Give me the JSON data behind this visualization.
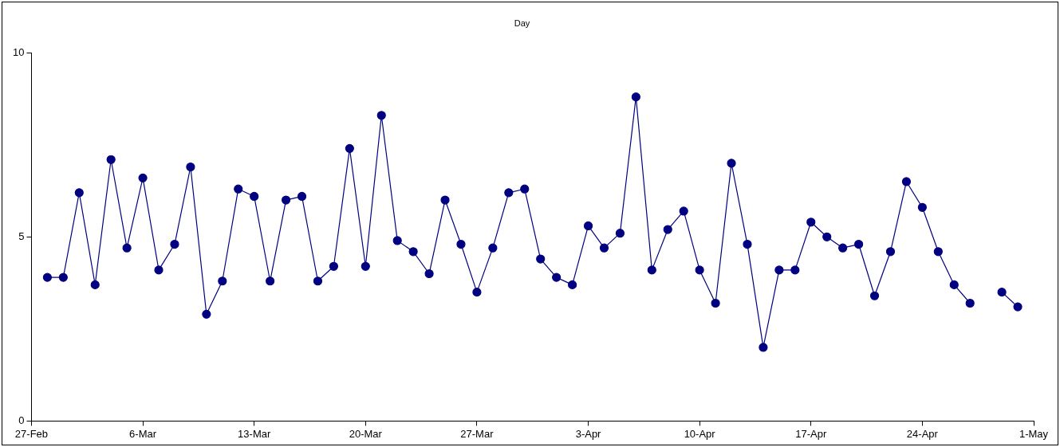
{
  "chart_data": {
    "type": "line",
    "title": "Day",
    "x": [
      "--02-28",
      "--03-01",
      "--03-02",
      "--03-03",
      "--03-04",
      "--03-05",
      "--03-06",
      "--03-07",
      "--03-08",
      "--03-09",
      "--03-10",
      "--03-11",
      "--03-12",
      "--03-13",
      "--03-14",
      "--03-15",
      "--03-16",
      "--03-17",
      "--03-18",
      "--03-19",
      "--03-20",
      "--03-21",
      "--03-22",
      "--03-23",
      "--03-24",
      "--03-25",
      "--03-26",
      "--03-27",
      "--03-28",
      "--03-29",
      "--03-30",
      "--03-31",
      "--04-01",
      "--04-02",
      "--04-03",
      "--04-04",
      "--04-05",
      "--04-06",
      "--04-07",
      "--04-08",
      "--04-09",
      "--04-10",
      "--04-11",
      "--04-12",
      "--04-13",
      "--04-14",
      "--04-15",
      "--04-16",
      "--04-17",
      "--04-18",
      "--04-19",
      "--04-20",
      "--04-21",
      "--04-22",
      "--04-23",
      "--04-24",
      "--04-25",
      "--04-26",
      "--04-27",
      "--04-28",
      "--04-29",
      "--04-30"
    ],
    "series": [
      {
        "color": "#000080",
        "values": [
          3.9,
          3.9,
          6.2,
          3.7,
          7.1,
          4.7,
          6.6,
          4.1,
          4.8,
          6.9,
          2.9,
          3.8,
          6.3,
          6.1,
          3.8,
          6.0,
          6.1,
          3.8,
          4.2,
          7.4,
          4.2,
          8.3,
          4.9,
          4.6,
          4.0,
          6.0,
          4.8,
          3.5,
          4.7,
          6.2,
          6.3,
          4.4,
          3.9,
          3.7,
          5.3,
          4.7,
          5.1,
          8.8,
          4.1,
          5.2,
          5.7,
          4.1,
          3.2,
          7.0,
          4.8,
          2.0,
          4.1,
          4.1,
          5.4,
          5.0,
          4.7,
          4.8,
          3.4,
          4.6,
          6.5,
          5.8,
          4.6,
          3.7,
          3.2,
          null,
          3.5,
          3.1
        ]
      }
    ],
    "xlim": [
      "--02-27",
      "--05-01"
    ],
    "xticks": [
      {
        "value": "--02-27",
        "label": "27-Feb"
      },
      {
        "value": "--03-06",
        "label": "6-Mar"
      },
      {
        "value": "--03-13",
        "label": "13-Mar"
      },
      {
        "value": "--03-20",
        "label": "20-Mar"
      },
      {
        "value": "--03-27",
        "label": "27-Mar"
      },
      {
        "value": "--04-03",
        "label": "3-Apr"
      },
      {
        "value": "--04-10",
        "label": "10-Apr"
      },
      {
        "value": "--04-17",
        "label": "17-Apr"
      },
      {
        "value": "--04-24",
        "label": "24-Apr"
      },
      {
        "value": "--05-01",
        "label": "1-May"
      }
    ],
    "ylim": [
      0,
      10
    ],
    "yticks": [
      0,
      5,
      10
    ],
    "marker": "circle",
    "line_style": "solid",
    "grid": false,
    "legend": false
  }
}
